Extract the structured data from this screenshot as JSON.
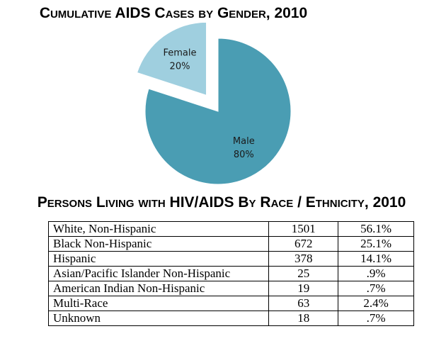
{
  "chart_data": {
    "type": "pie",
    "title": "Cumulative AIDS Cases by Gender, 2010",
    "categories": [
      "Male",
      "Female"
    ],
    "values": [
      80,
      20
    ],
    "value_labels": [
      "80%",
      "20%"
    ],
    "colors": [
      "#4a9db3",
      "#9fcfdf"
    ],
    "exploded": [
      false,
      true
    ]
  },
  "table": {
    "title": "Persons Living with HIV/AIDS By Race / Ethnicity, 2010",
    "rows": [
      [
        "White, Non-Hispanic",
        "1501",
        "56.1%"
      ],
      [
        "Black Non-Hispanic",
        "672",
        "25.1%"
      ],
      [
        "Hispanic",
        "378",
        "14.1%"
      ],
      [
        "Asian/Pacific Islander Non-Hispanic",
        "25",
        ".9%"
      ],
      [
        "American Indian Non-Hispanic",
        "19",
        ".7%"
      ],
      [
        "Multi-Race",
        "63",
        "2.4%"
      ],
      [
        "Unknown",
        "18",
        ".7%"
      ]
    ]
  }
}
